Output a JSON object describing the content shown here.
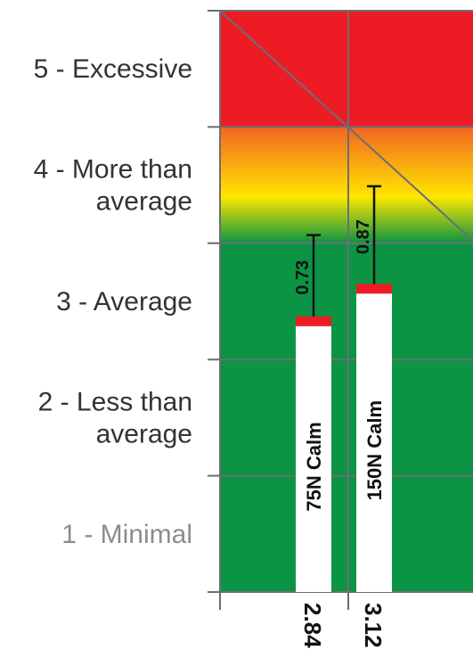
{
  "chart_data": {
    "type": "bar",
    "y_categories": [
      {
        "level": 1,
        "lines": [
          "1 - Minimal"
        ],
        "muted": true
      },
      {
        "level": 2,
        "lines": [
          "2 - Less than",
          "average"
        ],
        "muted": false
      },
      {
        "level": 3,
        "lines": [
          "3 - Average"
        ],
        "muted": false
      },
      {
        "level": 4,
        "lines": [
          "4 - More than",
          "average"
        ],
        "muted": false
      },
      {
        "level": 5,
        "lines": [
          "5 - Excessive"
        ],
        "muted": false
      }
    ],
    "ylim": [
      0.5,
      5.5
    ],
    "zones": [
      {
        "from": 0.5,
        "to": 3.5,
        "color": "#0b9444"
      },
      {
        "from": 3.5,
        "to": 4.5,
        "gradient": [
          "#f26522",
          "#ffe600",
          "#0b9444"
        ]
      },
      {
        "from": 4.5,
        "to": 5.5,
        "color": "#ed1c24"
      }
    ],
    "series": [
      {
        "name": "75N Calm",
        "value": 2.84,
        "error": 0.73,
        "value_label": "2.84",
        "error_label": "0.73"
      },
      {
        "name": "150N Calm",
        "value": 3.12,
        "error": 0.87,
        "value_label": "3.12",
        "error_label": "0.87"
      }
    ],
    "grid": true,
    "colors": {
      "bar_fill": "#ffffff",
      "bar_cap": "#ed1c24",
      "grid": "#6d6e71",
      "error_bar": "#111111"
    }
  }
}
